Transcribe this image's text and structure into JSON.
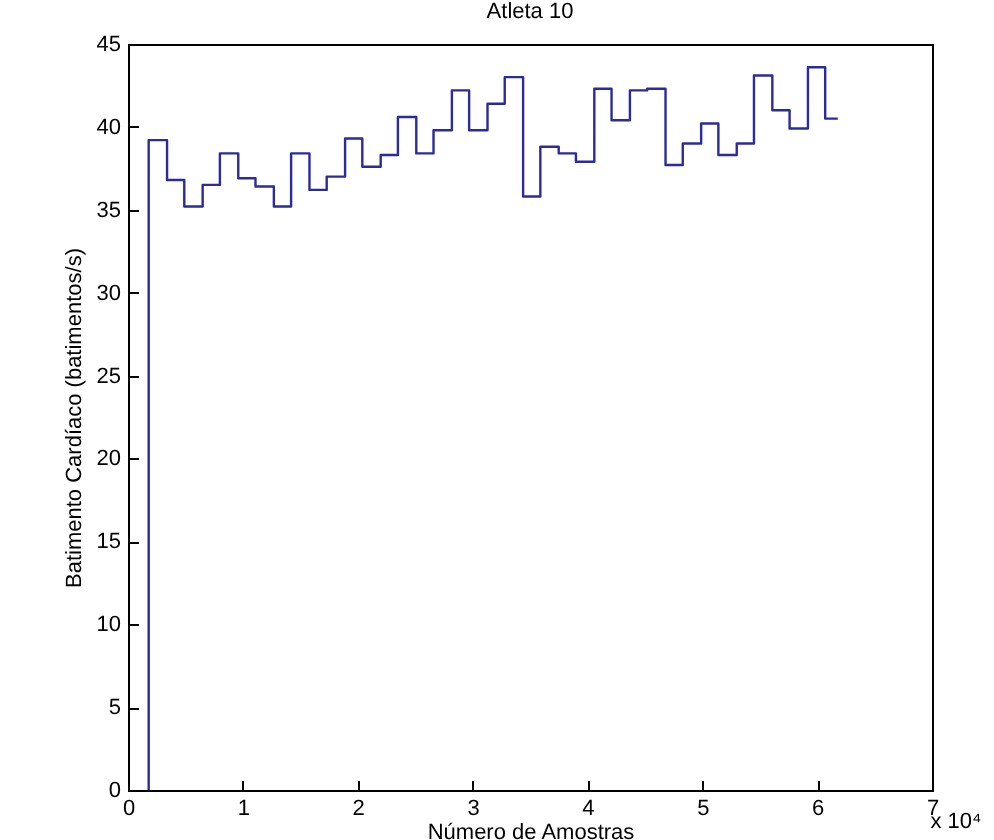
{
  "chart_data": {
    "type": "step",
    "title": "Atleta 10",
    "xlabel": "Número de Amostras",
    "ylabel": "Batimento Cardíaco (batimentos/s)",
    "annotations": [
      "x 10⁴"
    ],
    "x": [
      0.18,
      0.18,
      0.34,
      0.49,
      0.65,
      0.8,
      0.96,
      1.11,
      1.27,
      1.42,
      1.58,
      1.73,
      1.89,
      2.04,
      2.2,
      2.35,
      2.51,
      2.66,
      2.82,
      2.97,
      3.13,
      3.28,
      3.44,
      3.59,
      3.75,
      3.9,
      4.06,
      4.21,
      4.37,
      4.52,
      4.68,
      4.83,
      4.99,
      5.14,
      5.3,
      5.45,
      5.61,
      5.76,
      5.92,
      6.07,
      6.18
    ],
    "series": [
      {
        "color": "#2b2b9a",
        "values": [
          0,
          39.2,
          36.8,
          35.2,
          36.5,
          38.4,
          36.9,
          36.4,
          35.2,
          38.4,
          36.2,
          37.0,
          39.3,
          37.6,
          38.3,
          40.6,
          38.4,
          39.8,
          42.2,
          39.8,
          41.4,
          43.0,
          35.8,
          38.8,
          38.4,
          37.9,
          42.3,
          40.4,
          42.2,
          42.3,
          37.7,
          39.0,
          40.2,
          38.3,
          39.0,
          43.1,
          41.0,
          39.9,
          43.6,
          40.5,
          40.5
        ]
      }
    ],
    "xlim": [
      0,
      7
    ],
    "xticks": [
      0,
      1,
      2,
      3,
      4,
      5,
      6,
      7
    ],
    "ylim": [
      0,
      45
    ],
    "yticks": [
      0,
      5,
      10,
      15,
      20,
      25,
      30,
      35,
      40,
      45
    ],
    "grid": false,
    "line_style": "solid"
  }
}
